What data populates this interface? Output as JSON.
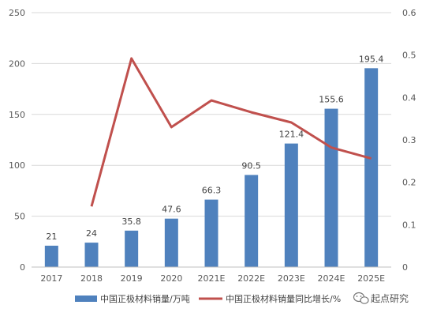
{
  "chart_data": {
    "type": "bar",
    "categories": [
      "2017",
      "2018",
      "2019",
      "2020",
      "2021E",
      "2022E",
      "2023E",
      "2024E",
      "2025E"
    ],
    "series": [
      {
        "name": "中国正极材料销量/万吨",
        "type": "bar",
        "axis": "left",
        "color": "#4f81bd",
        "values": [
          21,
          24,
          35.8,
          47.6,
          66.3,
          90.5,
          121.4,
          155.6,
          195.4
        ],
        "labels": [
          "21",
          "24",
          "35.8",
          "47.6",
          "66.3",
          "90.5",
          "121.4",
          "155.6",
          "195.4"
        ]
      },
      {
        "name": "中国正极材料销量同比增长/%",
        "type": "line",
        "axis": "right",
        "color": "#c0504d",
        "values": [
          null,
          0.143,
          0.492,
          0.33,
          0.393,
          0.365,
          0.341,
          0.282,
          0.256
        ]
      }
    ],
    "y_left": {
      "min": 0,
      "max": 250,
      "ticks": [
        "0",
        "50",
        "100",
        "150",
        "200",
        "250"
      ]
    },
    "y_right": {
      "min": 0,
      "max": 0.6,
      "ticks": [
        "0",
        "0.1",
        "0.2",
        "0.3",
        "0.4",
        "0.5",
        "0.6"
      ]
    },
    "grid": true,
    "legend": "bottom"
  },
  "watermark": {
    "text": "起点研究",
    "icon": "wechat-icon"
  }
}
